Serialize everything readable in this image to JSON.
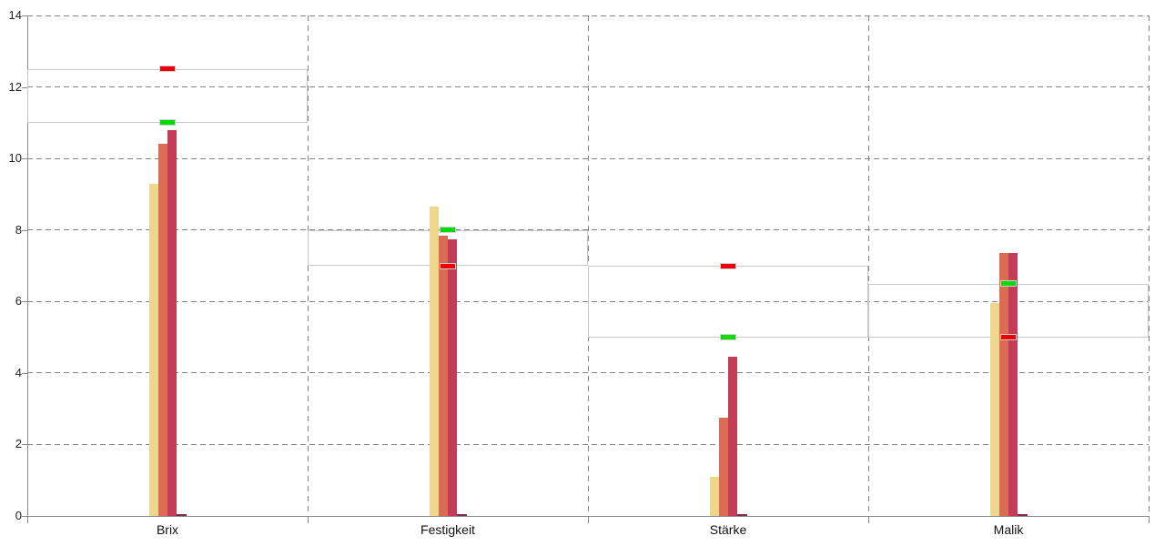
{
  "chart_data": {
    "type": "bar",
    "title": "",
    "xlabel": "",
    "ylabel": "",
    "categories": [
      "Brix",
      "Festigkeit",
      "Stärke",
      "Malik"
    ],
    "series": [
      {
        "id": "series-1",
        "color": "#EDD78C",
        "values": [
          9.3,
          8.65,
          1.1,
          5.95
        ]
      },
      {
        "id": "series-2",
        "color": "#DB6C53",
        "values": [
          10.4,
          7.85,
          2.75,
          7.35
        ]
      },
      {
        "id": "series-3",
        "color": "#C33D56",
        "values": [
          10.8,
          7.75,
          4.45,
          7.35
        ]
      },
      {
        "id": "series-4",
        "color": "#7B2C50",
        "values": [
          0.05,
          0.05,
          0.05,
          0.05
        ]
      }
    ],
    "target_markers": [
      {
        "id": "red-target-marker",
        "color": "#EE0000",
        "values": [
          12.5,
          7.0,
          7.0,
          5.0
        ]
      },
      {
        "id": "green-target-marker",
        "color": "#00DC00",
        "values": [
          11.0,
          8.0,
          5.0,
          6.5
        ]
      }
    ],
    "reference_bands": [
      {
        "category": "Brix",
        "from": 11.0,
        "to": 12.5
      },
      {
        "category": "Festigkeit",
        "from": 7.0,
        "to": 8.0
      },
      {
        "category": "Stärke",
        "from": 5.0,
        "to": 7.0
      },
      {
        "category": "Malik",
        "from": 5.0,
        "to": 6.5
      }
    ],
    "y_axis": {
      "min": 0,
      "max": 14,
      "tick_step": 2,
      "tick_labels": [
        "0",
        "2",
        "4",
        "6",
        "8",
        "10",
        "12",
        "14"
      ]
    },
    "ylim": [
      0,
      14
    ],
    "grid": "dashed horizontal gridlines at each tick; dashed vertical panel separators",
    "legend": "none",
    "colors": {
      "background": "#FFFFFF",
      "axis": "#8A8A8A",
      "gridline": "#838383",
      "band_border": "#C8C8C8",
      "marker_border": "#CFCFCF",
      "text": "#1F1F1F"
    }
  }
}
